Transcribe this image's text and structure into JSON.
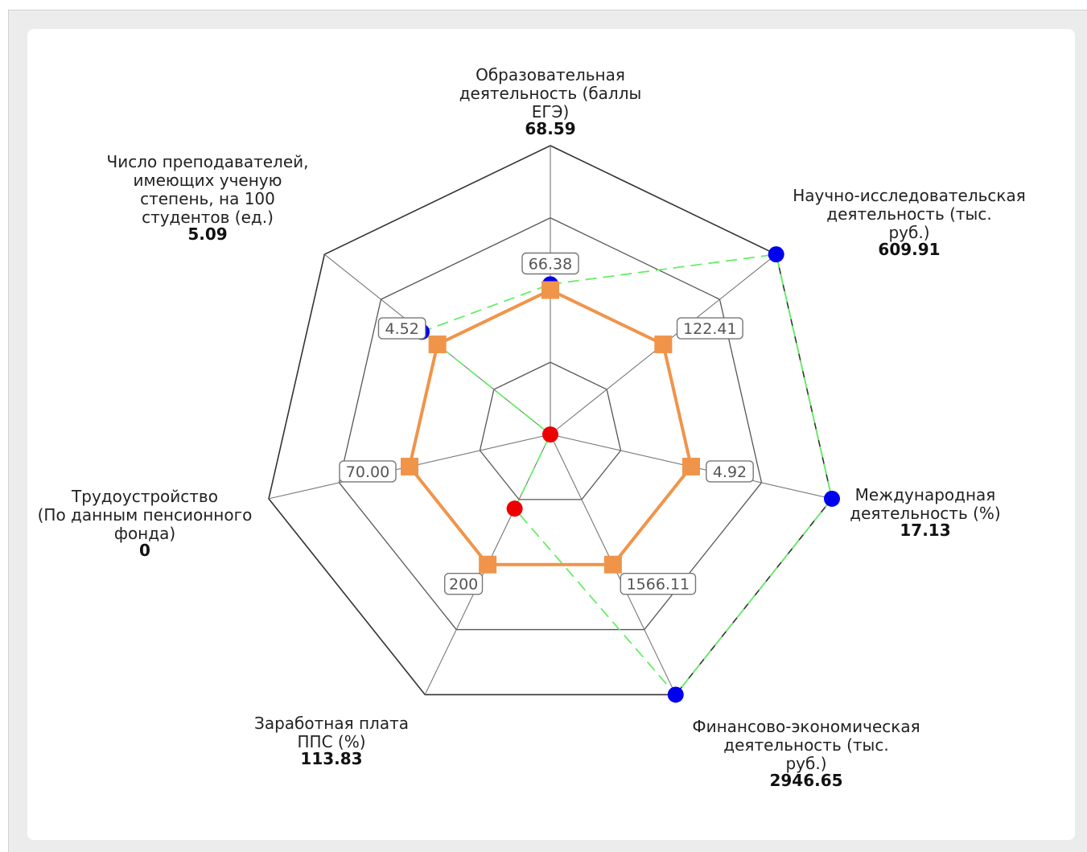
{
  "chart_data": {
    "type": "radar",
    "title": "",
    "axes": [
      {
        "name_lines": [
          "Образовательная",
          "деятельность (баллы",
          "ЕГЭ)"
        ],
        "value": "68.59"
      },
      {
        "name_lines": [
          "Научно-исследовательская",
          "деятельность (тыс.",
          "руб.)"
        ],
        "value": "609.91"
      },
      {
        "name_lines": [
          "Международная",
          "деятельность (%)"
        ],
        "value": "17.13"
      },
      {
        "name_lines": [
          "Финансово-экономическая",
          "деятельность (тыс.",
          "руб.)"
        ],
        "value": "2946.65"
      },
      {
        "name_lines": [
          "Заработная плата",
          "ППС (%)"
        ],
        "value": "113.83"
      },
      {
        "name_lines": [
          "Трудоустройство",
          "(По данным пенсионного",
          "фонда)"
        ],
        "value": "0"
      },
      {
        "name_lines": [
          "Число преподавателей,",
          "имеющих ученую",
          "степень, на 100",
          "студентов (ед.)"
        ],
        "value": "5.09"
      }
    ],
    "rings": 4,
    "range": [
      0,
      1
    ],
    "series": [
      {
        "role": "threshold",
        "color": "#f0944a",
        "marker": "square",
        "line": "solid",
        "normalized": [
          0.5,
          0.5,
          0.5,
          0.5,
          0.5,
          0.5,
          0.5
        ],
        "labels": [
          "66.38",
          "122.41",
          "4.92",
          "1566.11",
          "200",
          "70.00",
          "4.52"
        ]
      },
      {
        "role": "actual",
        "line_color": "#66ee66",
        "line": "dashed",
        "normalized": [
          0.52,
          1.0,
          1.0,
          1.0,
          0.285,
          0.0,
          0.57
        ],
        "marker_colors": [
          "#0000ee",
          "#0000ee",
          "#0000ee",
          "#0000ee",
          "#ee0000",
          "#ee0000",
          "#0000ee"
        ]
      }
    ]
  }
}
